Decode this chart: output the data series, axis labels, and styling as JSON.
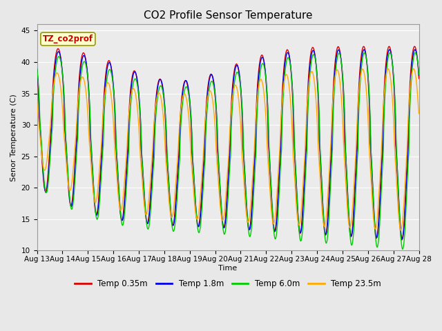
{
  "title": "CO2 Profile Sensor Temperature",
  "ylabel": "Senor Temperature (C)",
  "xlabel": "Time",
  "annotation": "TZ_co2prof",
  "annotation_color": "#cc0000",
  "annotation_bg": "#ffffcc",
  "annotation_border": "#cccc00",
  "ylim": [
    10,
    46
  ],
  "yticks": [
    10,
    15,
    20,
    25,
    30,
    35,
    40,
    45
  ],
  "xtick_labels": [
    "Aug 13",
    "Aug 14",
    "Aug 15",
    "Aug 16",
    "Aug 17",
    "Aug 18",
    "Aug 19",
    "Aug 20",
    "Aug 21",
    "Aug 22",
    "Aug 23",
    "Aug 24",
    "Aug 25",
    "Aug 26",
    "Aug 27",
    "Aug 28"
  ],
  "legend_labels": [
    "Temp 0.35m",
    "Temp 1.8m",
    "Temp 6.0m",
    "Temp 23.5m"
  ],
  "line_colors": [
    "#dd0000",
    "#0000ee",
    "#00cc00",
    "#ffaa00"
  ],
  "bg_color": "#e8e8e8",
  "plot_bg": "#ebebeb",
  "grid_color": "#ffffff",
  "title_fontsize": 11,
  "label_fontsize": 8,
  "tick_fontsize": 7.5
}
